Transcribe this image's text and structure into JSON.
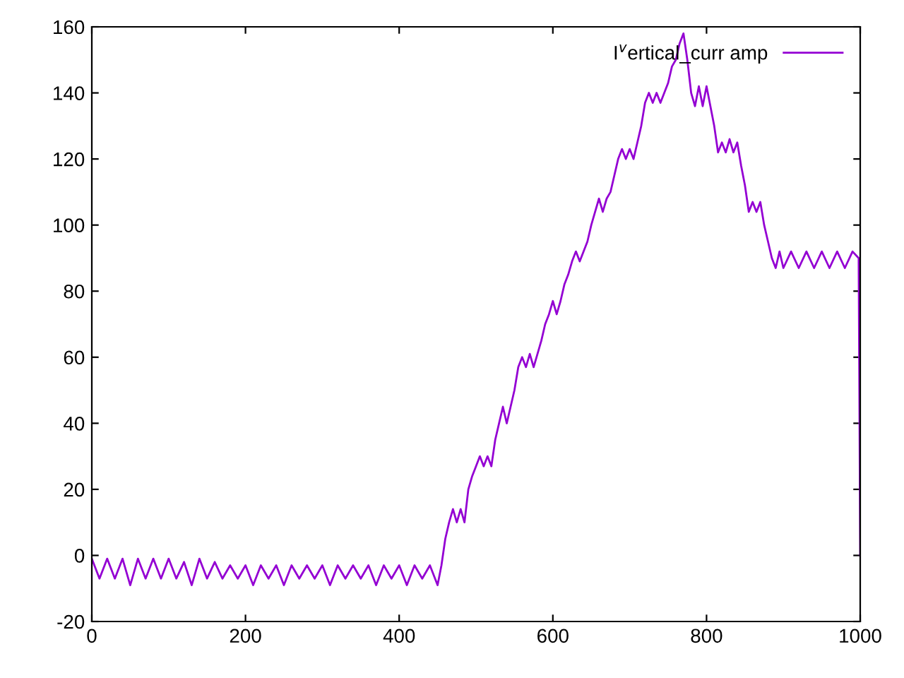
{
  "chart_data": {
    "type": "line",
    "xlim": [
      0,
      1000
    ],
    "ylim": [
      -20,
      160
    ],
    "xticks": [
      0,
      200,
      400,
      600,
      800,
      1000
    ],
    "yticks": [
      -20,
      0,
      20,
      40,
      60,
      80,
      100,
      120,
      140,
      160
    ],
    "grid": false,
    "legend": "top right",
    "line_style": "solid",
    "marker": "none",
    "series": [
      {
        "name": "I$^{v}$ertical_curr amp",
        "color": "#9400d3",
        "x": [
          0,
          10,
          20,
          30,
          40,
          50,
          60,
          70,
          80,
          90,
          100,
          110,
          120,
          130,
          140,
          150,
          160,
          170,
          180,
          190,
          200,
          210,
          220,
          230,
          240,
          250,
          260,
          270,
          280,
          290,
          300,
          310,
          320,
          330,
          340,
          350,
          360,
          370,
          380,
          390,
          400,
          410,
          420,
          430,
          440,
          450,
          455,
          460,
          465,
          470,
          475,
          480,
          485,
          490,
          495,
          500,
          505,
          510,
          515,
          520,
          525,
          530,
          535,
          540,
          545,
          550,
          555,
          560,
          565,
          570,
          575,
          580,
          585,
          590,
          595,
          600,
          605,
          610,
          615,
          620,
          625,
          630,
          635,
          640,
          645,
          650,
          655,
          660,
          665,
          670,
          675,
          680,
          685,
          690,
          695,
          700,
          705,
          710,
          715,
          720,
          725,
          730,
          735,
          740,
          745,
          750,
          755,
          760,
          765,
          770,
          775,
          780,
          785,
          790,
          795,
          800,
          805,
          810,
          815,
          820,
          825,
          830,
          835,
          840,
          845,
          850,
          855,
          860,
          865,
          870,
          875,
          880,
          885,
          890,
          895,
          900,
          910,
          920,
          930,
          940,
          950,
          960,
          970,
          980,
          990,
          998,
          1000
        ],
        "values": [
          -1,
          -7,
          -1,
          -7,
          -1,
          -9,
          -1,
          -7,
          -1,
          -7,
          -1,
          -7,
          -2,
          -9,
          -1,
          -7,
          -2,
          -7,
          -3,
          -7,
          -3,
          -9,
          -3,
          -7,
          -3,
          -9,
          -3,
          -7,
          -3,
          -7,
          -3,
          -9,
          -3,
          -7,
          -3,
          -7,
          -3,
          -9,
          -3,
          -7,
          -3,
          -9,
          -3,
          -7,
          -3,
          -9,
          -3,
          5,
          10,
          14,
          10,
          14,
          10,
          20,
          24,
          27,
          30,
          27,
          30,
          27,
          35,
          40,
          45,
          40,
          45,
          50,
          57,
          60,
          57,
          61,
          57,
          61,
          65,
          70,
          73,
          77,
          73,
          77,
          82,
          85,
          89,
          92,
          89,
          92,
          95,
          100,
          104,
          108,
          104,
          108,
          110,
          115,
          120,
          123,
          120,
          123,
          120,
          125,
          130,
          137,
          140,
          137,
          140,
          137,
          140,
          143,
          148,
          150,
          155,
          158,
          150,
          140,
          136,
          142,
          136,
          142,
          136,
          130,
          122,
          125,
          122,
          126,
          122,
          125,
          118,
          112,
          104,
          107,
          104,
          107,
          100,
          95,
          90,
          87,
          92,
          87,
          92,
          87,
          92,
          87,
          92,
          87,
          92,
          87,
          92,
          90,
          0
        ]
      }
    ]
  }
}
